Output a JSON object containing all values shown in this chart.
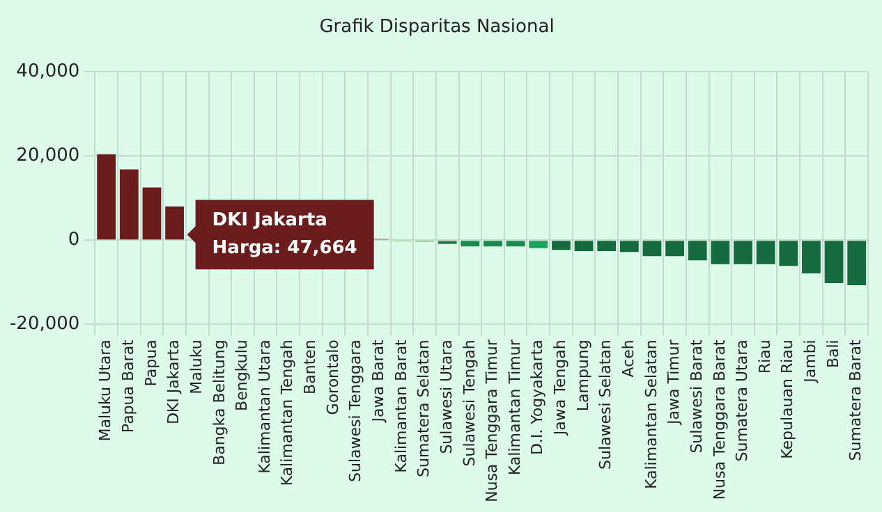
{
  "chart_data": {
    "type": "bar",
    "title": "Grafik Disparitas Nasional",
    "categories": [
      "Maluku Utara",
      "Papua Barat",
      "Papua",
      "DKI Jakarta",
      "Maluku",
      "Bangka Belitung",
      "Bengkulu",
      "Kalimantan Utara",
      "Kalimantan Tengah",
      "Banten",
      "Gorontalo",
      "Sulawesi Tenggara",
      "Jawa Barat",
      "Kalimantan Barat",
      "Sumatera Selatan",
      "Sulawesi Utara",
      "Sulawesi Tengah",
      "Nusa Tenggara Timur",
      "Kalimantan Timur",
      "D.I. Yogyakarta",
      "Jawa Tengah",
      "Lampung",
      "Sulawesi Selatan",
      "Aceh",
      "Kalimantan Selatan",
      "Jawa Timur",
      "Sulawesi Barat",
      "Nusa Tenggara Barat",
      "Sumatera Utara",
      "Riau",
      "Kepulauan Riau",
      "Jambi",
      "Bali",
      "Sumatera Barat"
    ],
    "values": [
      20400,
      16800,
      12500,
      8000,
      null,
      null,
      null,
      null,
      null,
      null,
      null,
      null,
      300,
      -300,
      -400,
      -900,
      -1500,
      -1500,
      -1500,
      -1900,
      -2300,
      -2600,
      -2600,
      -2800,
      -3800,
      -3800,
      -4800,
      -5700,
      -5700,
      -5700,
      -6100,
      -7900,
      -10200,
      -10700
    ],
    "colors": [
      "#6b1d1d",
      "#6b1d1d",
      "#6b1d1d",
      "#6b1d1d",
      "#6b1d1d",
      "#6b1d1d",
      "#6b1d1d",
      "#6b1d1d",
      "#7a2a2a",
      "#7a2a2a",
      "#7a2a2a",
      "#8a3030",
      "#8a3a30",
      "#a9b84a",
      "#8fce7a",
      "#1a8a4e",
      "#1a8a4e",
      "#1a8a4e",
      "#1a8a4e",
      "#21a060",
      "#156b3e",
      "#156b3e",
      "#156b3e",
      "#156b3e",
      "#156b3e",
      "#156b3e",
      "#156b3e",
      "#156b3e",
      "#156b3e",
      "#156b3e",
      "#156b3e",
      "#156b3e",
      "#156b3e",
      "#156b3e"
    ],
    "ylim": [
      -20000,
      40000
    ],
    "yticks": [
      {
        "value": -20000,
        "label": "-20,000"
      },
      0,
      {
        "value": 20000,
        "label": "20,000"
      },
      {
        "value": 40000,
        "label": "40,000"
      }
    ],
    "grid": true,
    "annotations": [
      "DKI Jakarta",
      "Harga: 47,664"
    ]
  }
}
